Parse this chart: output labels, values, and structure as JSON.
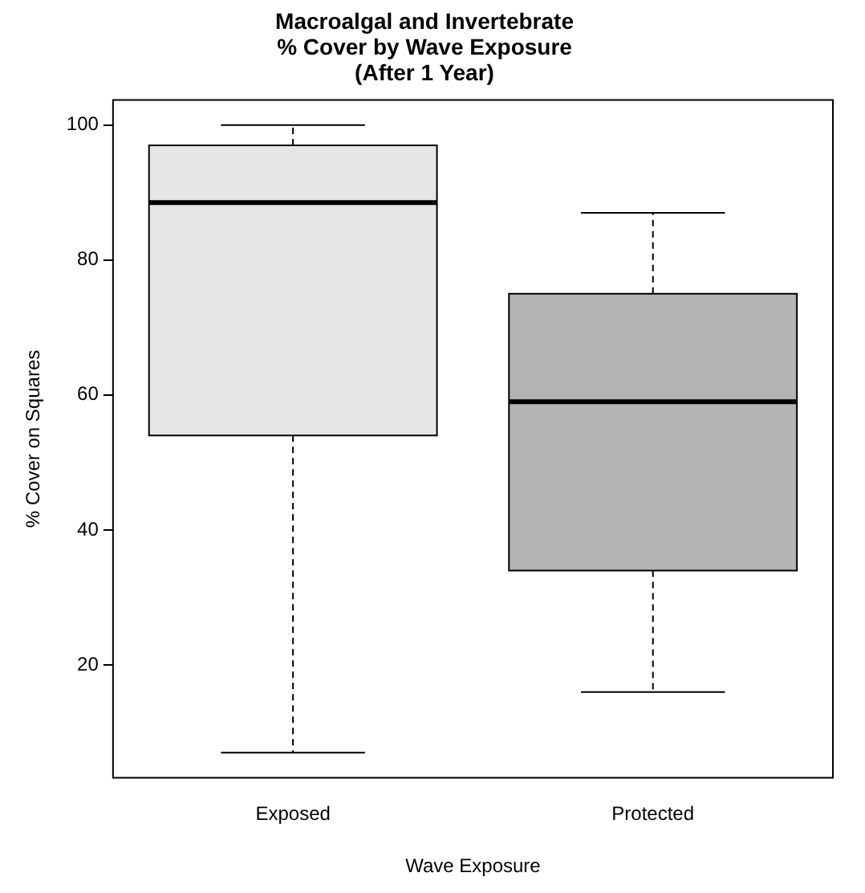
{
  "chart_data": {
    "type": "box",
    "title": "Macroalgal and Invertebrate\n% Cover by Wave Exposure\n(After 1 Year)",
    "xlabel": "Wave Exposure",
    "ylabel": "% Cover on Squares",
    "categories": [
      "Exposed",
      "Protected"
    ],
    "colors": [
      "#e6e6e6",
      "#b3b3b3"
    ],
    "boxes": [
      {
        "low": 7,
        "q1": 54,
        "median": 88.5,
        "q3": 97,
        "high": 100
      },
      {
        "low": 16,
        "q1": 34,
        "median": 59,
        "q3": 75,
        "high": 87
      }
    ],
    "ylim": [
      3.3,
      103.7
    ],
    "yticks": [
      20,
      40,
      60,
      80,
      100
    ]
  }
}
